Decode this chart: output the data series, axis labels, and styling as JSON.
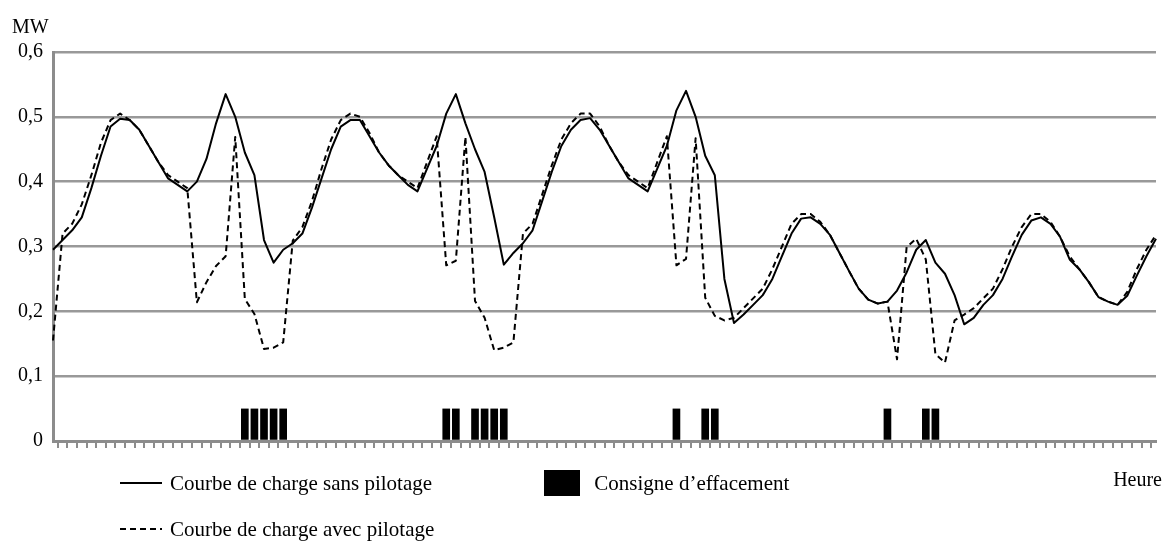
{
  "chart_data": {
    "type": "line",
    "xlabel": "Heure",
    "ylabel": "MW",
    "categories": [
      null,
      null,
      null,
      null,
      null,
      null,
      null,
      null,
      null,
      null,
      null,
      null,
      null,
      null,
      null,
      null,
      null,
      null,
      null,
      null,
      null,
      null,
      null,
      null,
      null,
      null,
      null,
      null,
      null,
      null,
      null,
      null,
      null,
      null,
      null,
      null,
      null,
      null,
      null,
      null,
      null,
      null,
      null,
      null,
      null,
      null,
      null,
      null,
      null,
      null,
      null,
      null,
      null,
      null,
      null,
      null,
      null,
      null,
      null,
      null,
      null,
      null,
      null,
      null,
      null,
      null,
      null,
      null,
      null,
      null,
      null,
      null,
      null,
      null,
      null,
      null,
      null,
      null,
      null,
      null,
      null,
      null,
      null,
      null,
      null,
      null,
      null,
      null,
      null,
      null,
      null,
      null,
      null,
      null,
      null,
      null,
      null,
      null,
      null,
      null,
      null,
      null,
      null,
      null,
      null,
      null,
      null,
      null,
      null,
      null,
      null,
      null,
      null,
      null,
      null,
      null
    ],
    "series": [
      {
        "name": "Courbe de charge sans pilotage",
        "color": "#000000",
        "line_style": "solid",
        "values": [
          0.295,
          0.31,
          0.325,
          0.345,
          0.39,
          0.44,
          0.485,
          0.497,
          0.495,
          0.48,
          0.455,
          0.43,
          0.405,
          0.395,
          0.385,
          0.4,
          0.435,
          0.49,
          0.535,
          0.5,
          0.445,
          0.41,
          0.31,
          0.275,
          0.295,
          0.305,
          0.32,
          0.36,
          0.405,
          0.45,
          0.485,
          0.495,
          0.495,
          0.47,
          0.445,
          0.425,
          0.41,
          0.395,
          0.385,
          0.42,
          0.455,
          0.505,
          0.535,
          0.49,
          0.45,
          0.415,
          0.345,
          0.272,
          0.29,
          0.305,
          0.325,
          0.37,
          0.415,
          0.455,
          0.48,
          0.495,
          0.498,
          0.48,
          0.455,
          0.43,
          0.405,
          0.395,
          0.385,
          0.42,
          0.455,
          0.51,
          0.54,
          0.5,
          0.44,
          0.41,
          0.25,
          0.182,
          0.195,
          0.21,
          0.225,
          0.25,
          0.285,
          0.32,
          0.343,
          0.345,
          0.335,
          0.318,
          0.29,
          0.262,
          0.235,
          0.218,
          0.212,
          0.215,
          0.232,
          0.26,
          0.295,
          0.31,
          0.275,
          0.258,
          0.225,
          0.18,
          0.19,
          0.21,
          0.225,
          0.25,
          0.285,
          0.318,
          0.34,
          0.345,
          0.335,
          0.315,
          0.28,
          0.265,
          0.245,
          0.222,
          0.215,
          0.21,
          0.224,
          0.255,
          0.285,
          0.312
        ]
      },
      {
        "name": "Courbe de charge avec pilotage",
        "color": "#000000",
        "line_style": "dashed",
        "values": [
          0.155,
          0.32,
          0.335,
          0.365,
          0.41,
          0.46,
          0.495,
          0.505,
          0.495,
          0.48,
          0.455,
          0.43,
          0.41,
          0.4,
          0.39,
          0.214,
          0.245,
          0.27,
          0.285,
          0.469,
          0.219,
          0.196,
          0.142,
          0.144,
          0.152,
          0.309,
          0.33,
          0.37,
          0.42,
          0.465,
          0.495,
          0.505,
          0.5,
          0.475,
          0.445,
          0.425,
          0.41,
          0.4,
          0.39,
          0.43,
          0.47,
          0.271,
          0.278,
          0.469,
          0.216,
          0.19,
          0.14,
          0.144,
          0.152,
          0.32,
          0.335,
          0.38,
          0.425,
          0.465,
          0.49,
          0.505,
          0.505,
          0.485,
          0.455,
          0.43,
          0.41,
          0.4,
          0.39,
          0.43,
          0.47,
          0.271,
          0.281,
          0.467,
          0.221,
          0.193,
          0.186,
          0.19,
          0.205,
          0.22,
          0.235,
          0.265,
          0.3,
          0.335,
          0.35,
          0.35,
          0.338,
          0.318,
          0.29,
          0.262,
          0.235,
          0.218,
          0.212,
          0.215,
          0.126,
          0.299,
          0.312,
          0.28,
          0.134,
          0.121,
          0.186,
          0.195,
          0.205,
          0.22,
          0.235,
          0.265,
          0.3,
          0.33,
          0.35,
          0.35,
          0.338,
          0.315,
          0.285,
          0.265,
          0.245,
          0.222,
          0.215,
          0.21,
          0.23,
          0.265,
          0.295,
          0.318
        ]
      },
      {
        "name": "Consigne d’effacement",
        "type": "bar",
        "color": "#000000",
        "values": [
          null,
          null,
          null,
          null,
          null,
          null,
          null,
          null,
          null,
          null,
          null,
          null,
          null,
          null,
          null,
          null,
          null,
          null,
          null,
          null,
          0.05,
          0.05,
          0.05,
          0.05,
          0.05,
          null,
          null,
          null,
          null,
          null,
          null,
          null,
          null,
          null,
          null,
          null,
          null,
          null,
          null,
          null,
          null,
          0.05,
          0.05,
          null,
          0.05,
          0.05,
          0.05,
          0.05,
          null,
          null,
          null,
          null,
          null,
          null,
          null,
          null,
          null,
          null,
          null,
          null,
          null,
          null,
          null,
          null,
          null,
          0.05,
          null,
          null,
          0.05,
          0.05,
          null,
          null,
          null,
          null,
          null,
          null,
          null,
          null,
          null,
          null,
          null,
          null,
          null,
          null,
          null,
          null,
          null,
          0.05,
          null,
          null,
          null,
          0.05,
          0.05,
          null,
          null,
          null,
          null,
          null,
          null,
          null,
          null,
          null,
          null,
          null,
          null,
          null,
          null,
          null,
          null,
          null,
          null,
          null,
          null,
          null,
          null,
          null
        ]
      }
    ],
    "ylim": [
      0,
      0.6
    ],
    "yticks": [
      {
        "value": 0,
        "label": "0"
      },
      {
        "value": 0.1,
        "label": "0,1"
      },
      {
        "value": 0.2,
        "label": "0,2"
      },
      {
        "value": 0.3,
        "label": "0,3"
      },
      {
        "value": 0.4,
        "label": "0,4"
      },
      {
        "value": 0.5,
        "label": "0,5"
      },
      {
        "value": 0.6,
        "label": "0,6"
      }
    ],
    "grid": "y",
    "legend": "bottom",
    "tick_labels": "y",
    "marker": "none"
  }
}
